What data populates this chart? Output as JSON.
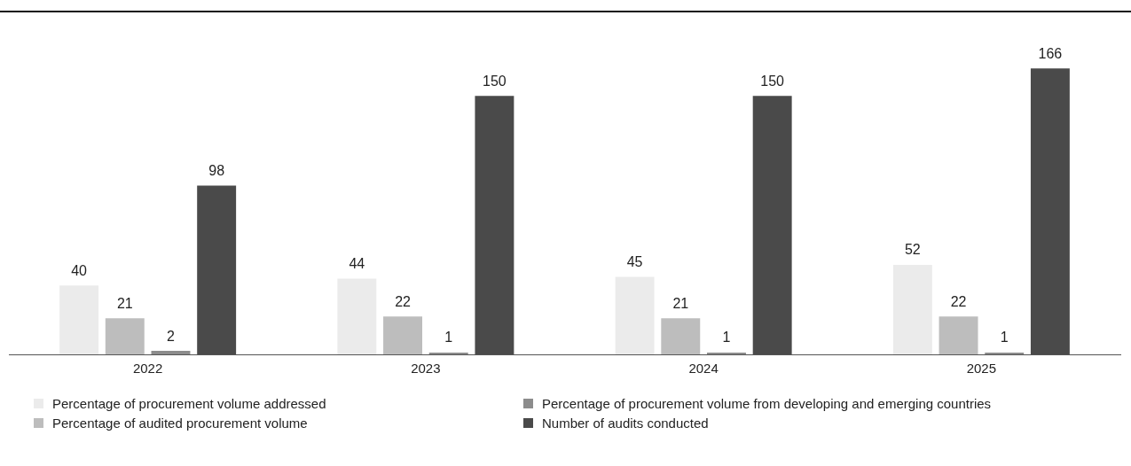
{
  "chart_data": {
    "type": "bar",
    "categories": [
      "2022",
      "2023",
      "2024",
      "2025"
    ],
    "series": [
      {
        "name": "Percentage of procurement volume addressed",
        "color": "#ebebeb",
        "values": [
          40,
          44,
          45,
          52
        ]
      },
      {
        "name": "Percentage of audited procurement volume",
        "color": "#bdbdbd",
        "values": [
          21,
          22,
          21,
          22
        ]
      },
      {
        "name": "Percentage of procurement volume from developing and emerging countries",
        "color": "#8c8c8c",
        "values": [
          2,
          1,
          1,
          1
        ]
      },
      {
        "name": "Number of audits conducted",
        "color": "#4a4a4a",
        "values": [
          98,
          150,
          150,
          166
        ]
      }
    ],
    "data_labels": true,
    "legend": "bottom",
    "grid": false,
    "tick_labels": "x"
  }
}
